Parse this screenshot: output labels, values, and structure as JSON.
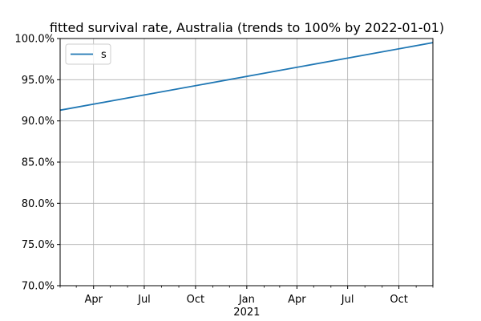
{
  "chart_data": {
    "type": "line",
    "title": "fitted survival rate, Australia (trends to 100% by 2022-01-01)",
    "xlabel": "",
    "ylabel": "",
    "x_range": [
      "2020-02-01",
      "2021-12-01"
    ],
    "ylim": [
      70,
      100
    ],
    "y_ticks": [
      {
        "value": 70,
        "label": "70.0%"
      },
      {
        "value": 75,
        "label": "75.0%"
      },
      {
        "value": 80,
        "label": "80.0%"
      },
      {
        "value": 85,
        "label": "85.0%"
      },
      {
        "value": 90,
        "label": "90.0%"
      },
      {
        "value": 95,
        "label": "95.0%"
      },
      {
        "value": 100,
        "label": "100.0%"
      }
    ],
    "x_major_ticks": [
      {
        "date": "2020-04-01",
        "label": "Apr"
      },
      {
        "date": "2020-07-01",
        "label": "Jul"
      },
      {
        "date": "2020-10-01",
        "label": "Oct"
      },
      {
        "date": "2021-01-01",
        "label": "Jan"
      },
      {
        "date": "2021-04-01",
        "label": "Apr"
      },
      {
        "date": "2021-07-01",
        "label": "Jul"
      },
      {
        "date": "2021-10-01",
        "label": "Oct"
      }
    ],
    "x_minor_ticks": [
      "2020-02-01",
      "2020-03-01",
      "2020-05-01",
      "2020-06-01",
      "2020-08-01",
      "2020-09-01",
      "2020-11-01",
      "2020-12-01",
      "2021-02-01",
      "2021-03-01",
      "2021-05-01",
      "2021-06-01",
      "2021-08-01",
      "2021-09-01",
      "2021-11-01",
      "2021-12-01"
    ],
    "year_label": "2021",
    "grid": true,
    "legend_position": "upper-left",
    "series": [
      {
        "name": "s",
        "color": "#1f77b4",
        "points": [
          {
            "x": "2020-02-01",
            "y": 91.3
          },
          {
            "x": "2021-12-01",
            "y": 99.5
          }
        ]
      }
    ]
  }
}
